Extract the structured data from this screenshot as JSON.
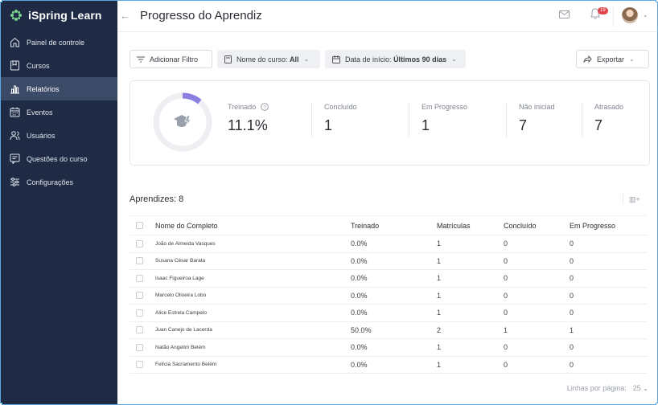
{
  "app": {
    "name": "iSpring Learn"
  },
  "sidebar": {
    "items": [
      {
        "label": "Painel de controle",
        "icon": "home-icon",
        "active": false
      },
      {
        "label": "Cursos",
        "icon": "course-icon",
        "active": false
      },
      {
        "label": "Relatórios",
        "icon": "chart-icon",
        "active": true
      },
      {
        "label": "Eventos",
        "icon": "calendar-icon",
        "active": false
      },
      {
        "label": "Usuários",
        "icon": "users-icon",
        "active": false
      },
      {
        "label": "Questões do curso",
        "icon": "questions-icon",
        "active": false
      },
      {
        "label": "Configurações",
        "icon": "settings-icon",
        "active": false
      }
    ]
  },
  "header": {
    "title": "Progresso do Aprendiz",
    "notification_count": "19"
  },
  "toolbar": {
    "add_filter": "Adicionar Filtro",
    "course_label": "Nome do curso:",
    "course_value": "All",
    "date_label": "Data de início:",
    "date_value": "Últimos 90 dias",
    "export": "Exportar"
  },
  "stats": {
    "trained_label": "Treinado",
    "trained_value": "11.1%",
    "trained_fraction": 0.111,
    "completed_label": "Concluído",
    "completed_value": "1",
    "in_progress_label": "Em Progresso",
    "in_progress_value": "1",
    "not_started_label": "Não iniciad",
    "not_started_value": "7",
    "late_label": "Atrasado",
    "late_value": "7"
  },
  "learners": {
    "title": "Aprendizes: 8",
    "columns": [
      "Nome do Completo",
      "Treinado",
      "Matrículas",
      "Concluído",
      "Em Progresso"
    ],
    "rows": [
      [
        "João de Almeida Vasques",
        "0.0%",
        "1",
        "0",
        "0"
      ],
      [
        "Susana César Barata",
        "0.0%",
        "1",
        "0",
        "0"
      ],
      [
        "Isaac Figueiroa Lage",
        "0.0%",
        "1",
        "0",
        "0"
      ],
      [
        "Marcelo Oliveira Lobo",
        "0.0%",
        "1",
        "0",
        "0"
      ],
      [
        "Alice Estrela Campelo",
        "0.0%",
        "1",
        "0",
        "0"
      ],
      [
        "Juan Canejo de Lacerda",
        "50.0%",
        "2",
        "1",
        "1"
      ],
      [
        "Natão Angelim Belém",
        "0.0%",
        "1",
        "0",
        "0"
      ],
      [
        "Felícia Sacramento Belém",
        "0.0%",
        "1",
        "0",
        "0"
      ]
    ]
  },
  "footer": {
    "rows_per_page_label": "Linhas por página:",
    "rows_per_page_value": "25"
  },
  "colors": {
    "sidebar": "#1f2b44",
    "sidebar_active": "#3a4a67",
    "accent": "#8b7fe0",
    "badge": "#e0474c"
  }
}
